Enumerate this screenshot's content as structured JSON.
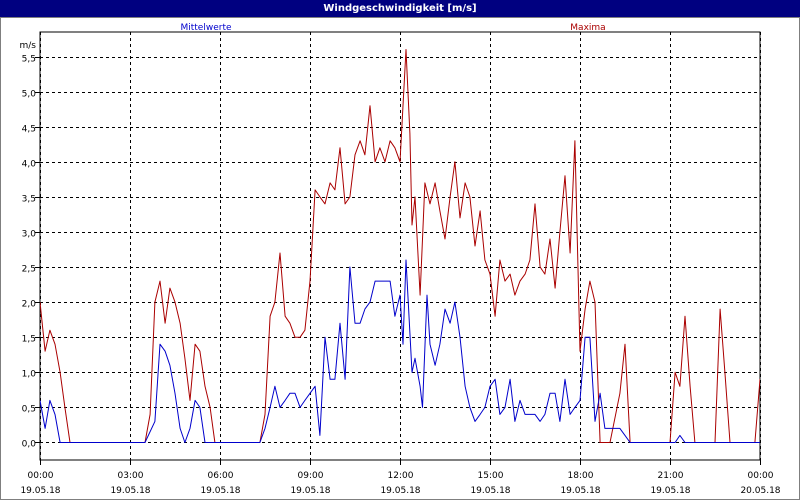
{
  "window": {
    "title": "Windgeschwindigkeit [m/s]"
  },
  "chart_data": {
    "type": "line",
    "ylabel": "m/s",
    "ylim": [
      -0.25,
      5.85
    ],
    "y_ticks": [
      "0,0",
      "0,5",
      "1,0",
      "1,5",
      "2,0",
      "2,5",
      "3,0",
      "3,5",
      "4,0",
      "4,5",
      "5,0",
      "5,5"
    ],
    "y_tick_values": [
      0,
      0.5,
      1,
      1.5,
      2,
      2.5,
      3,
      3.5,
      4,
      4.5,
      5,
      5.5
    ],
    "x_unit": "hours since 19.05.18 00:00",
    "xlim": [
      0,
      24
    ],
    "x_ticks": [
      {
        "time": "00:00",
        "date": "19.05.18"
      },
      {
        "time": "03:00",
        "date": "19.05.18"
      },
      {
        "time": "06:00",
        "date": "19.05.18"
      },
      {
        "time": "09:00",
        "date": "19.05.18"
      },
      {
        "time": "12:00",
        "date": "19.05.18"
      },
      {
        "time": "15:00",
        "date": "19.05.18"
      },
      {
        "time": "18:00",
        "date": "19.05.18"
      },
      {
        "time": "21:00",
        "date": "19.05.18"
      },
      {
        "time": "00:00",
        "date": "20.05.18"
      }
    ],
    "grid": true,
    "series": [
      {
        "name": "Mittelwerte",
        "color": "#0000cc",
        "points": [
          [
            0,
            0.6
          ],
          [
            0.17,
            0.2
          ],
          [
            0.33,
            0.6
          ],
          [
            0.5,
            0.4
          ],
          [
            0.67,
            0
          ],
          [
            1,
            0
          ],
          [
            3.5,
            0
          ],
          [
            3.83,
            0.3
          ],
          [
            4,
            1.4
          ],
          [
            4.17,
            1.3
          ],
          [
            4.33,
            1.1
          ],
          [
            4.5,
            0.7
          ],
          [
            4.67,
            0.2
          ],
          [
            4.83,
            0
          ],
          [
            5,
            0.2
          ],
          [
            5.17,
            0.6
          ],
          [
            5.33,
            0.5
          ],
          [
            5.5,
            0
          ],
          [
            6,
            0
          ],
          [
            7.33,
            0
          ],
          [
            7.5,
            0.2
          ],
          [
            7.67,
            0.5
          ],
          [
            7.83,
            0.8
          ],
          [
            8,
            0.5
          ],
          [
            8.17,
            0.6
          ],
          [
            8.33,
            0.7
          ],
          [
            8.5,
            0.7
          ],
          [
            8.67,
            0.5
          ],
          [
            8.83,
            0.6
          ],
          [
            9,
            0.7
          ],
          [
            9.17,
            0.8
          ],
          [
            9.33,
            0.1
          ],
          [
            9.5,
            1.5
          ],
          [
            9.67,
            0.9
          ],
          [
            9.83,
            0.9
          ],
          [
            10,
            1.7
          ],
          [
            10.17,
            0.9
          ],
          [
            10.33,
            2.5
          ],
          [
            10.5,
            1.7
          ],
          [
            10.67,
            1.7
          ],
          [
            10.83,
            1.9
          ],
          [
            11,
            2
          ],
          [
            11.17,
            2.3
          ],
          [
            11.33,
            2.3
          ],
          [
            11.5,
            2.3
          ],
          [
            11.67,
            2.3
          ],
          [
            11.83,
            1.8
          ],
          [
            12,
            2.1
          ],
          [
            12.1,
            1.4
          ],
          [
            12.2,
            2.6
          ],
          [
            12.4,
            1
          ],
          [
            12.5,
            1.2
          ],
          [
            12.67,
            0.8
          ],
          [
            12.75,
            0.5
          ],
          [
            12.9,
            2.1
          ],
          [
            13,
            1.4
          ],
          [
            13.17,
            1.1
          ],
          [
            13.33,
            1.4
          ],
          [
            13.5,
            1.9
          ],
          [
            13.67,
            1.7
          ],
          [
            13.83,
            2
          ],
          [
            14,
            1.5
          ],
          [
            14.17,
            0.8
          ],
          [
            14.33,
            0.5
          ],
          [
            14.5,
            0.3
          ],
          [
            14.67,
            0.4
          ],
          [
            14.83,
            0.5
          ],
          [
            15,
            0.8
          ],
          [
            15.17,
            0.9
          ],
          [
            15.33,
            0.4
          ],
          [
            15.5,
            0.5
          ],
          [
            15.67,
            0.9
          ],
          [
            15.83,
            0.3
          ],
          [
            16,
            0.6
          ],
          [
            16.17,
            0.4
          ],
          [
            16.33,
            0.4
          ],
          [
            16.5,
            0.4
          ],
          [
            16.67,
            0.3
          ],
          [
            16.83,
            0.4
          ],
          [
            17,
            0.7
          ],
          [
            17.17,
            0.7
          ],
          [
            17.33,
            0.3
          ],
          [
            17.5,
            0.9
          ],
          [
            17.67,
            0.4
          ],
          [
            17.83,
            0.5
          ],
          [
            18,
            0.6
          ],
          [
            18.17,
            1.5
          ],
          [
            18.33,
            1.5
          ],
          [
            18.5,
            0.3
          ],
          [
            18.67,
            0.7
          ],
          [
            18.83,
            0.2
          ],
          [
            19,
            0.2
          ],
          [
            19.33,
            0.2
          ],
          [
            19.5,
            0.1
          ],
          [
            19.67,
            0
          ],
          [
            20,
            0
          ],
          [
            21.17,
            0
          ],
          [
            21.33,
            0.1
          ],
          [
            21.5,
            0
          ],
          [
            24,
            0
          ]
        ]
      },
      {
        "name": "Maxima",
        "color": "#aa0000",
        "points": [
          [
            0,
            2
          ],
          [
            0.17,
            1.3
          ],
          [
            0.33,
            1.6
          ],
          [
            0.5,
            1.4
          ],
          [
            0.67,
            1
          ],
          [
            0.83,
            0.5
          ],
          [
            1,
            0
          ],
          [
            3.5,
            0
          ],
          [
            3.67,
            0.4
          ],
          [
            3.83,
            2
          ],
          [
            4,
            2.3
          ],
          [
            4.17,
            1.7
          ],
          [
            4.33,
            2.2
          ],
          [
            4.5,
            2.0
          ],
          [
            4.67,
            1.7
          ],
          [
            4.83,
            1.2
          ],
          [
            5,
            0.6
          ],
          [
            5.17,
            1.4
          ],
          [
            5.33,
            1.3
          ],
          [
            5.5,
            0.8
          ],
          [
            5.67,
            0.5
          ],
          [
            5.83,
            0
          ],
          [
            6,
            0
          ],
          [
            7.33,
            0
          ],
          [
            7.5,
            0.4
          ],
          [
            7.67,
            1.8
          ],
          [
            7.83,
            2.0
          ],
          [
            8,
            2.7
          ],
          [
            8.17,
            1.8
          ],
          [
            8.33,
            1.7
          ],
          [
            8.5,
            1.5
          ],
          [
            8.67,
            1.5
          ],
          [
            8.83,
            1.6
          ],
          [
            9,
            2.3
          ],
          [
            9.17,
            3.6
          ],
          [
            9.33,
            3.5
          ],
          [
            9.5,
            3.4
          ],
          [
            9.67,
            3.7
          ],
          [
            9.83,
            3.6
          ],
          [
            10,
            4.2
          ],
          [
            10.17,
            3.4
          ],
          [
            10.33,
            3.5
          ],
          [
            10.5,
            4.1
          ],
          [
            10.67,
            4.3
          ],
          [
            10.83,
            4.1
          ],
          [
            11,
            4.8
          ],
          [
            11.17,
            4.0
          ],
          [
            11.33,
            4.2
          ],
          [
            11.5,
            4.0
          ],
          [
            11.67,
            4.3
          ],
          [
            11.83,
            4.2
          ],
          [
            12,
            4.0
          ],
          [
            12.2,
            5.6
          ],
          [
            12.33,
            4.4
          ],
          [
            12.4,
            3.1
          ],
          [
            12.5,
            3.5
          ],
          [
            12.67,
            2.1
          ],
          [
            12.83,
            3.7
          ],
          [
            13,
            3.4
          ],
          [
            13.17,
            3.7
          ],
          [
            13.33,
            3.3
          ],
          [
            13.5,
            2.9
          ],
          [
            13.67,
            3.5
          ],
          [
            13.83,
            4.0
          ],
          [
            14,
            3.2
          ],
          [
            14.17,
            3.7
          ],
          [
            14.33,
            3.5
          ],
          [
            14.5,
            2.8
          ],
          [
            14.67,
            3.3
          ],
          [
            14.83,
            2.6
          ],
          [
            15,
            2.4
          ],
          [
            15.17,
            1.8
          ],
          [
            15.33,
            2.6
          ],
          [
            15.5,
            2.3
          ],
          [
            15.67,
            2.4
          ],
          [
            15.83,
            2.1
          ],
          [
            16,
            2.3
          ],
          [
            16.17,
            2.4
          ],
          [
            16.33,
            2.6
          ],
          [
            16.5,
            3.4
          ],
          [
            16.67,
            2.5
          ],
          [
            16.83,
            2.4
          ],
          [
            17,
            2.9
          ],
          [
            17.17,
            2.2
          ],
          [
            17.33,
            3.0
          ],
          [
            17.5,
            3.8
          ],
          [
            17.67,
            2.7
          ],
          [
            17.83,
            4.3
          ],
          [
            18,
            1.3
          ],
          [
            18.17,
            1.9
          ],
          [
            18.33,
            2.3
          ],
          [
            18.5,
            2.0
          ],
          [
            18.67,
            0
          ],
          [
            19,
            0
          ],
          [
            19.33,
            0.7
          ],
          [
            19.5,
            1.4
          ],
          [
            19.67,
            0
          ],
          [
            21,
            0
          ],
          [
            21.17,
            1.0
          ],
          [
            21.33,
            0.8
          ],
          [
            21.5,
            1.8
          ],
          [
            21.67,
            0.8
          ],
          [
            21.83,
            0
          ],
          [
            22.5,
            0
          ],
          [
            22.67,
            1.9
          ],
          [
            22.83,
            1.0
          ],
          [
            23,
            0
          ],
          [
            23.83,
            0
          ],
          [
            24,
            0.9
          ],
          [
            24.17,
            0
          ]
        ]
      }
    ]
  }
}
